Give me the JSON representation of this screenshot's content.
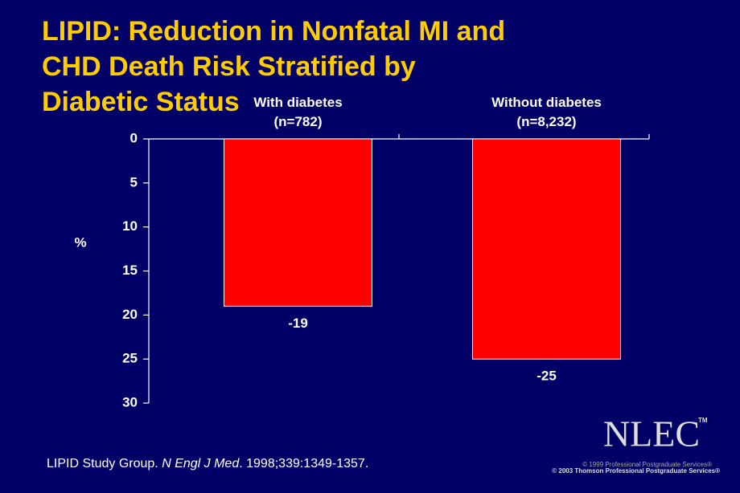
{
  "chart_data": {
    "type": "bar",
    "title": "LIPID: Reduction in Nonfatal MI and CHD Death Risk Stratified by Diabetic Status",
    "y_label": "%",
    "categories": [
      "With diabetes\n(n=782)",
      "Without diabetes\n(n=8,232)"
    ],
    "values": [
      -19,
      -25
    ],
    "color": "#ff0000",
    "ylim": [
      0,
      -30
    ],
    "yticks": [
      0,
      {
        "value": -5,
        "label": "5"
      },
      {
        "value": -10,
        "label": "10"
      },
      {
        "value": -15,
        "label": "15"
      },
      {
        "value": -20,
        "label": "20"
      },
      {
        "value": -25,
        "label": "25"
      },
      {
        "value": -30,
        "label": "30"
      }
    ]
  },
  "citation": {
    "authors": "LIPID Study Group. ",
    "journal": "N Engl J Med",
    "details": ". 1998;339:1349-1357."
  },
  "logo": {
    "text": "NLEC",
    "mark": "TM"
  },
  "copyright": [
    "© 1999 Professional Postgraduate Services®",
    "© 2003 Thomson Professional Postgraduate Services®"
  ]
}
